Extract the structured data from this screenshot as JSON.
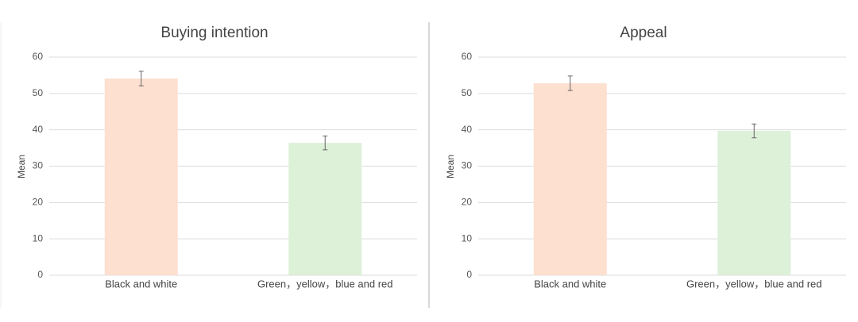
{
  "chart_data": [
    {
      "type": "bar",
      "title": "Buying intention",
      "y_label": "Mean",
      "categories": [
        "Black and white",
        "Green，yellow，blue and red"
      ],
      "values": [
        54.1,
        36.4
      ],
      "errors": [
        2,
        1.9
      ],
      "colors": [
        "#fde0d0",
        "#ddf0d8"
      ],
      "ylim": [
        0,
        60
      ],
      "yticks": [
        0,
        10,
        20,
        30,
        40,
        50,
        60
      ],
      "grid": true
    },
    {
      "type": "bar",
      "title": "Appeal",
      "y_label": "Mean",
      "categories": [
        "Black and white",
        "Green，yellow，blue and red"
      ],
      "values": [
        52.8,
        39.7
      ],
      "errors": [
        2,
        1.9
      ],
      "colors": [
        "#fde0d0",
        "#ddf0d8"
      ],
      "ylim": [
        0,
        60
      ],
      "yticks": [
        0,
        10,
        20,
        30,
        40,
        50,
        60
      ],
      "grid": true
    }
  ]
}
